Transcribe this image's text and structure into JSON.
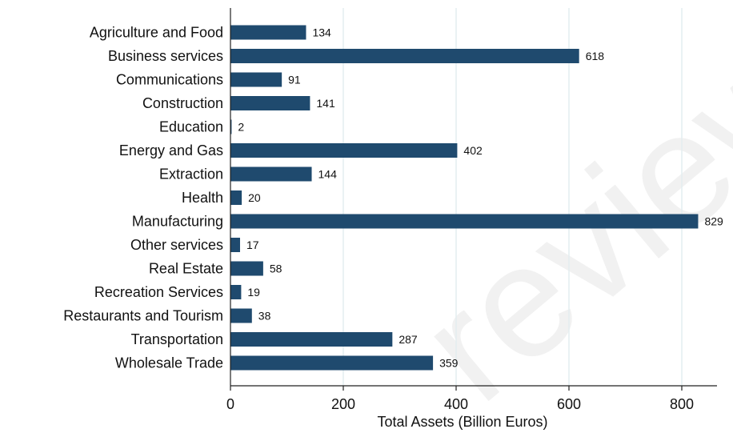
{
  "chart_data": {
    "type": "bar",
    "orientation": "horizontal",
    "categories": [
      "Agriculture and Food",
      "Business services",
      "Communications",
      "Construction",
      "Education",
      "Energy and Gas",
      "Extraction",
      "Health",
      "Manufacturing",
      "Other services",
      "Real Estate",
      "Recreation Services",
      "Restaurants and Tourism",
      "Transportation",
      "Wholesale Trade"
    ],
    "values": [
      134,
      618,
      91,
      141,
      2,
      402,
      144,
      20,
      829,
      17,
      58,
      19,
      38,
      287,
      359
    ],
    "value_labels": [
      "134",
      "618",
      "91",
      "141",
      "2",
      "402",
      "144",
      "20",
      "829",
      "17",
      "58",
      "19",
      "38",
      "287",
      "359"
    ],
    "xlabel": "Total Assets (Billion Euros)",
    "xlim": [
      0,
      860
    ],
    "xticks": [
      0,
      200,
      400,
      600,
      800
    ],
    "xtick_labels": [
      "0",
      "200",
      "400",
      "600",
      "800"
    ],
    "grid": "vertical",
    "bar_color": "#1f4a6e",
    "grid_color": "#e4eef0",
    "watermark": "review"
  }
}
